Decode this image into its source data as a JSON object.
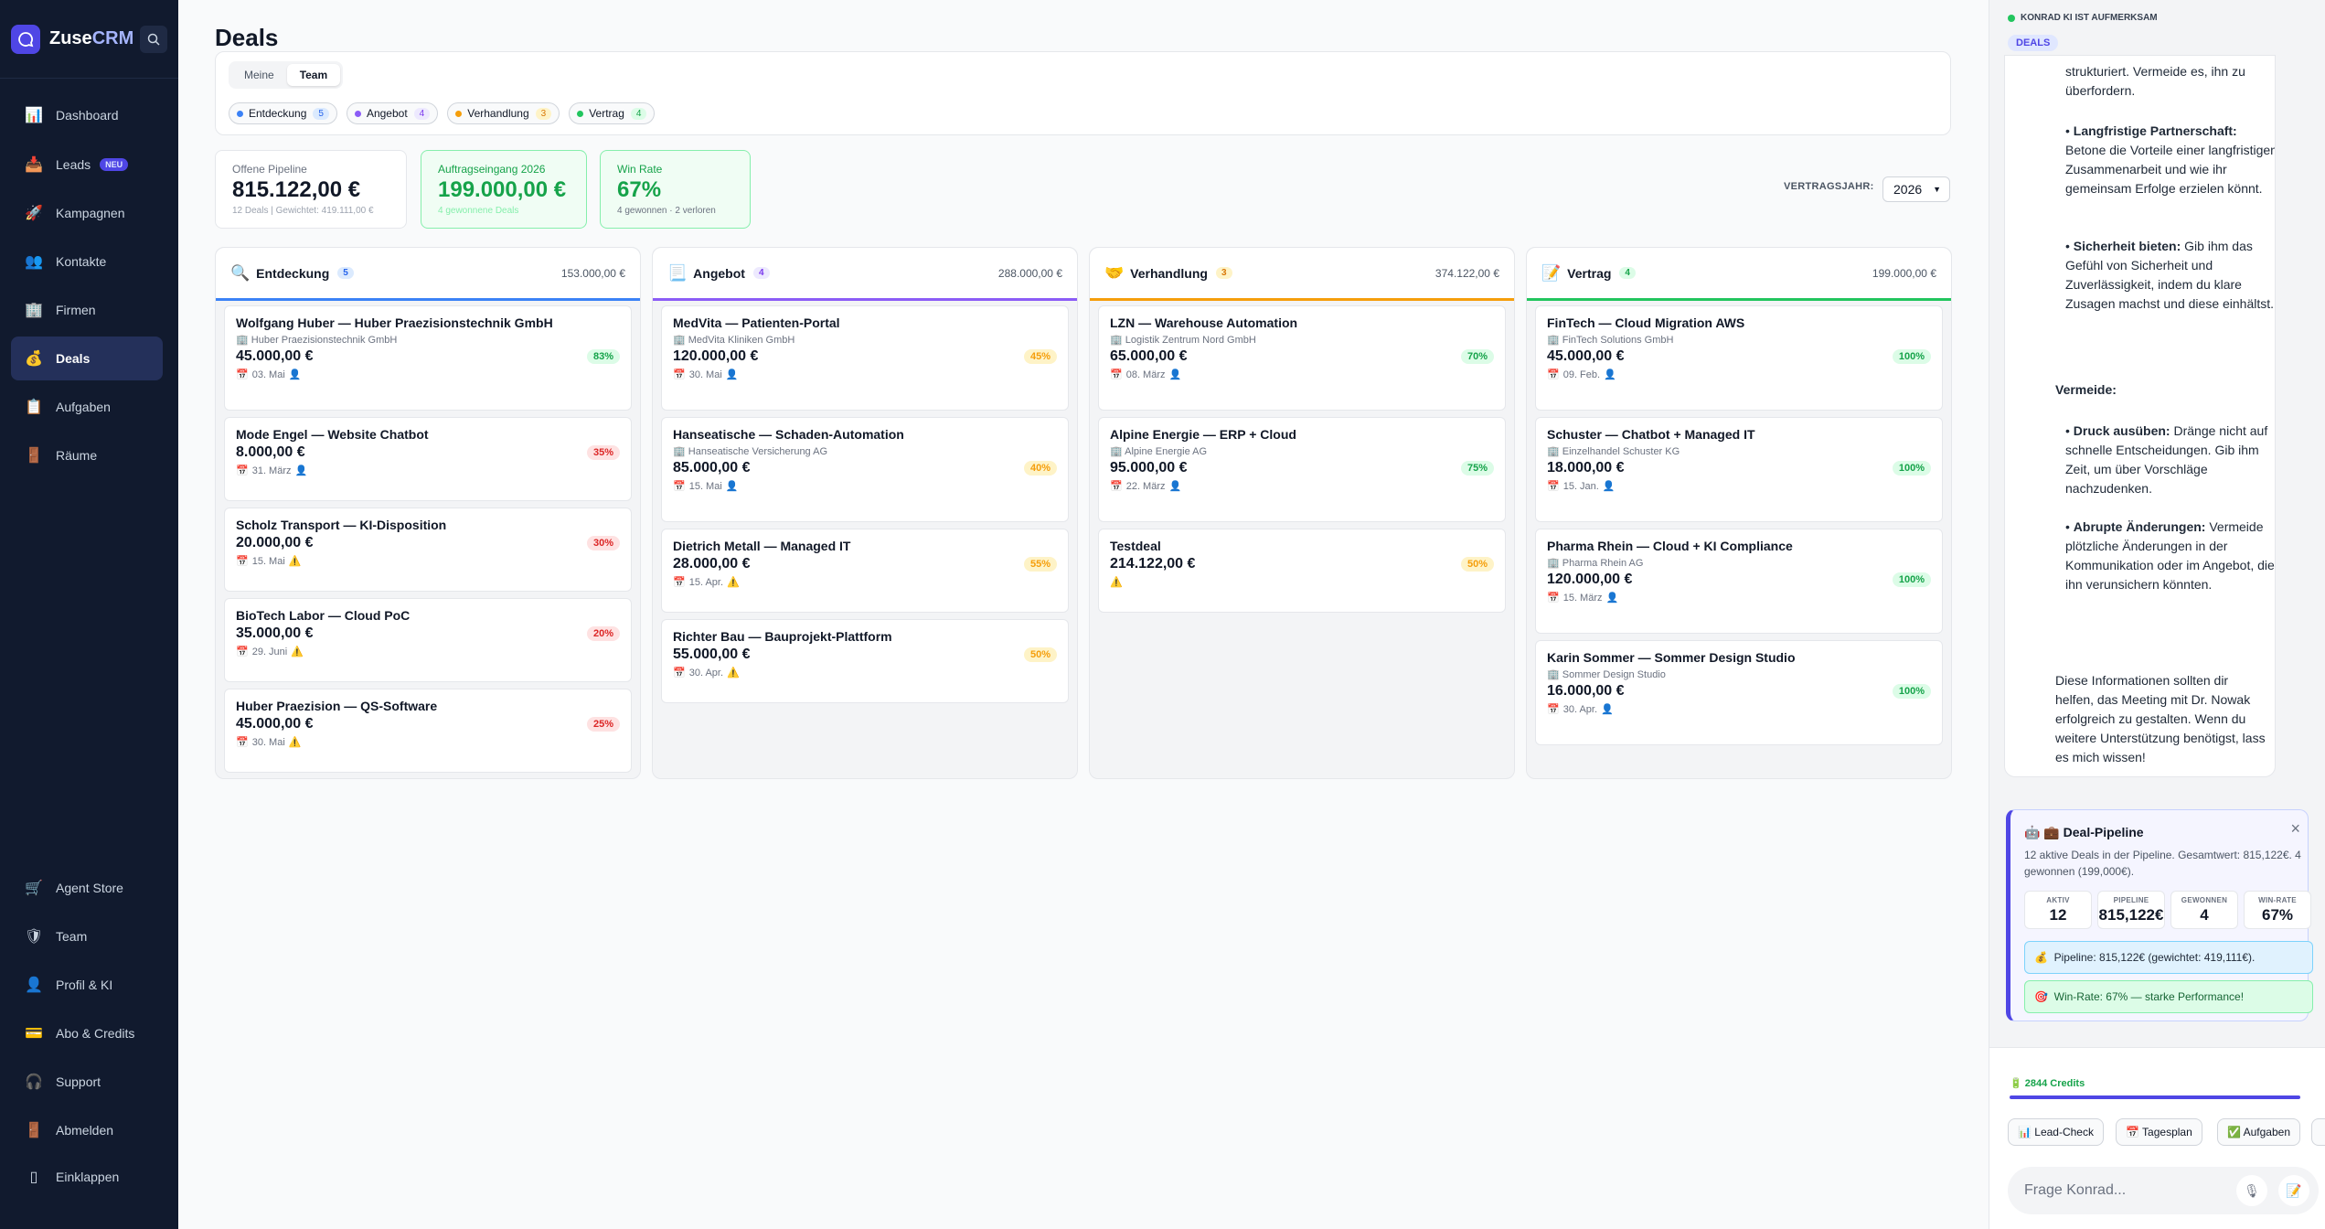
{
  "app": {
    "brand_a": "Zuse",
    "brand_b": "CRM"
  },
  "nav": {
    "items": [
      {
        "label": "Dashboard",
        "icon": "📊"
      },
      {
        "label": "Leads",
        "icon": "📥",
        "badge": "NEU"
      },
      {
        "label": "Kampagnen",
        "icon": "🚀"
      },
      {
        "label": "Kontakte",
        "icon": "👥"
      },
      {
        "label": "Firmen",
        "icon": "🏢"
      },
      {
        "label": "Deals",
        "icon": "💰"
      },
      {
        "label": "Aufgaben",
        "icon": "📋"
      },
      {
        "label": "Räume",
        "icon": "🚪"
      }
    ],
    "bottom": [
      {
        "label": "Agent Store",
        "icon": "🛒"
      },
      {
        "label": "Team",
        "icon": "🛡"
      },
      {
        "label": "Profil & KI",
        "icon": "👤"
      },
      {
        "label": "Abo & Credits",
        "icon": "💳"
      },
      {
        "label": "Support",
        "icon": "🎧"
      },
      {
        "label": "Abmelden",
        "icon": "🚪"
      },
      {
        "label": "Einklappen",
        "icon": "▯"
      }
    ]
  },
  "page": {
    "title": "Deals"
  },
  "toggle": {
    "mine": "Meine",
    "team": "Team"
  },
  "chips": [
    {
      "label": "Entdeckung",
      "count": "5"
    },
    {
      "label": "Angebot",
      "count": "4"
    },
    {
      "label": "Verhandlung",
      "count": "3"
    },
    {
      "label": "Vertrag",
      "count": "4"
    }
  ],
  "kpis": {
    "pipeline": {
      "label": "Offene Pipeline",
      "value": "815.122,00 €",
      "sub": "12 Deals | Gewichtet: 419.111,00 €"
    },
    "orders": {
      "label": "Auftragseingang 2026",
      "value": "199.000,00 €",
      "sub": "4 gewonnene Deals"
    },
    "winrate": {
      "label": "Win Rate",
      "value": "67%",
      "sub": "4 gewonnen · 2 verloren"
    }
  },
  "year": {
    "label": "VERTRAGSJAHR:",
    "value": "2026"
  },
  "columns": [
    {
      "title": "Entdeckung",
      "icon": "🔍",
      "count": "5",
      "total": "153.000,00 €",
      "cards": [
        {
          "title": "Wolfgang Huber — Huber Praezisionstechnik GmbH",
          "company": "Huber Praezisionstechnik GmbH",
          "amount": "45.000,00 €",
          "prob": "83%",
          "date": "03. Mai",
          "flag": "👤"
        },
        {
          "title": "Mode Engel — Website Chatbot",
          "amount": "8.000,00 €",
          "prob": "35%",
          "date": "31. März",
          "flag": "👤"
        },
        {
          "title": "Scholz Transport — KI-Disposition",
          "amount": "20.000,00 €",
          "prob": "30%",
          "date": "15. Mai",
          "flag": "⚠️"
        },
        {
          "title": "BioTech Labor — Cloud PoC",
          "amount": "35.000,00 €",
          "prob": "20%",
          "date": "29. Juni",
          "flag": "⚠️"
        },
        {
          "title": "Huber Praezision — QS-Software",
          "amount": "45.000,00 €",
          "prob": "25%",
          "date": "30. Mai",
          "flag": "⚠️"
        }
      ]
    },
    {
      "title": "Angebot",
      "icon": "📃",
      "count": "4",
      "total": "288.000,00 €",
      "cards": [
        {
          "title": "MedVita — Patienten-Portal",
          "company": "MedVita Kliniken GmbH",
          "amount": "120.000,00 €",
          "prob": "45%",
          "date": "30. Mai",
          "flag": "👤"
        },
        {
          "title": "Hanseatische — Schaden-Automation",
          "company": "Hanseatische Versicherung AG",
          "amount": "85.000,00 €",
          "prob": "40%",
          "date": "15. Mai",
          "flag": "👤"
        },
        {
          "title": "Dietrich Metall — Managed IT",
          "amount": "28.000,00 €",
          "prob": "55%",
          "date": "15. Apr.",
          "flag": "⚠️"
        },
        {
          "title": "Richter Bau — Bauprojekt-Plattform",
          "amount": "55.000,00 €",
          "prob": "50%",
          "date": "30. Apr.",
          "flag": "⚠️"
        }
      ]
    },
    {
      "title": "Verhandlung",
      "icon": "🤝",
      "count": "3",
      "total": "374.122,00 €",
      "cards": [
        {
          "title": "LZN — Warehouse Automation",
          "company": "Logistik Zentrum Nord GmbH",
          "amount": "65.000,00 €",
          "prob": "70%",
          "date": "08. März",
          "flag": "👤"
        },
        {
          "title": "Alpine Energie — ERP + Cloud",
          "company": "Alpine Energie AG",
          "amount": "95.000,00 €",
          "prob": "75%",
          "date": "22. März",
          "flag": "👤"
        },
        {
          "title": "Testdeal",
          "amount": "214.122,00 €",
          "prob": "50%",
          "flag": "⚠️"
        }
      ]
    },
    {
      "title": "Vertrag",
      "icon": "📝",
      "count": "4",
      "total": "199.000,00 €",
      "cards": [
        {
          "title": "FinTech — Cloud Migration AWS",
          "company": "FinTech Solutions GmbH",
          "amount": "45.000,00 €",
          "prob": "100%",
          "date": "09. Feb.",
          "flag": "👤"
        },
        {
          "title": "Schuster — Chatbot + Managed IT",
          "company": "Einzelhandel Schuster KG",
          "amount": "18.000,00 €",
          "prob": "100%",
          "date": "15. Jan.",
          "flag": "👤"
        },
        {
          "title": "Pharma Rhein — Cloud + KI Compliance",
          "company": "Pharma Rhein AG",
          "amount": "120.000,00 €",
          "prob": "100%",
          "date": "15. März",
          "flag": "👤"
        },
        {
          "title": "Karin Sommer — Sommer Design Studio",
          "company": "Sommer Design Studio",
          "amount": "16.000,00 €",
          "prob": "100%",
          "date": "30. Apr.",
          "flag": "👤"
        }
      ]
    }
  ],
  "assistant": {
    "status": "KONRAD KI IST AUFMERKSAM",
    "context": "DEALS",
    "msg": {
      "l1": "strukturiert. Vermeide es, ihn zu",
      "l2": "überfordern.",
      "b1_title": "Langfristige Partnerschaft:",
      "b1_text": "Betone die Vorteile einer langfristigen Zusammenarbeit und wie ihr gemeinsam Erfolge erzielen könnt.",
      "b2_title": "Sicherheit bieten:",
      "b2_text": "Gib ihm das Gefühl von Sicherheit und Zuverlässigkeit, indem du klare Zusagen machst und diese einhältst.",
      "avoid": "Vermeide:",
      "b3_title": "Druck ausüben:",
      "b3_text": "Dränge nicht auf schnelle Entscheidungen. Gib ihm Zeit, um über Vorschläge nachzudenken.",
      "b4_title": "Abrupte Änderungen:",
      "b4_text": "Vermeide plötzliche Änderungen in der Kommunikation oder im Angebot, die ihn verunsichern könnten.",
      "closing": "Diese Informationen sollten dir helfen, das Meeting mit Dr. Nowak erfolgreich zu gestalten. Wenn du weitere Unterstützung benötigst, lass es mich wissen!"
    },
    "pipeline_card": {
      "title": "💼 Deal-Pipeline",
      "desc": "12 aktive Deals in der Pipeline. Gesamtwert: 815,122€. 4 gewonnen (199,000€).",
      "stats": [
        {
          "label": "AKTIV",
          "value": "12"
        },
        {
          "label": "PIPELINE",
          "value": "815,122€"
        },
        {
          "label": "GEWONNEN",
          "value": "4"
        },
        {
          "label": "WIN-RATE",
          "value": "67%"
        }
      ],
      "note1": "Pipeline: 815,122€ (gewichtet: 419,111€).",
      "note2": "Win-Rate: 67% — starke Performance!"
    },
    "credits": "2844 Credits",
    "quick": [
      "📊 Lead-Check",
      "📅 Tagesplan",
      "✅ Aufgaben"
    ],
    "input_placeholder": "Frage Konrad..."
  }
}
